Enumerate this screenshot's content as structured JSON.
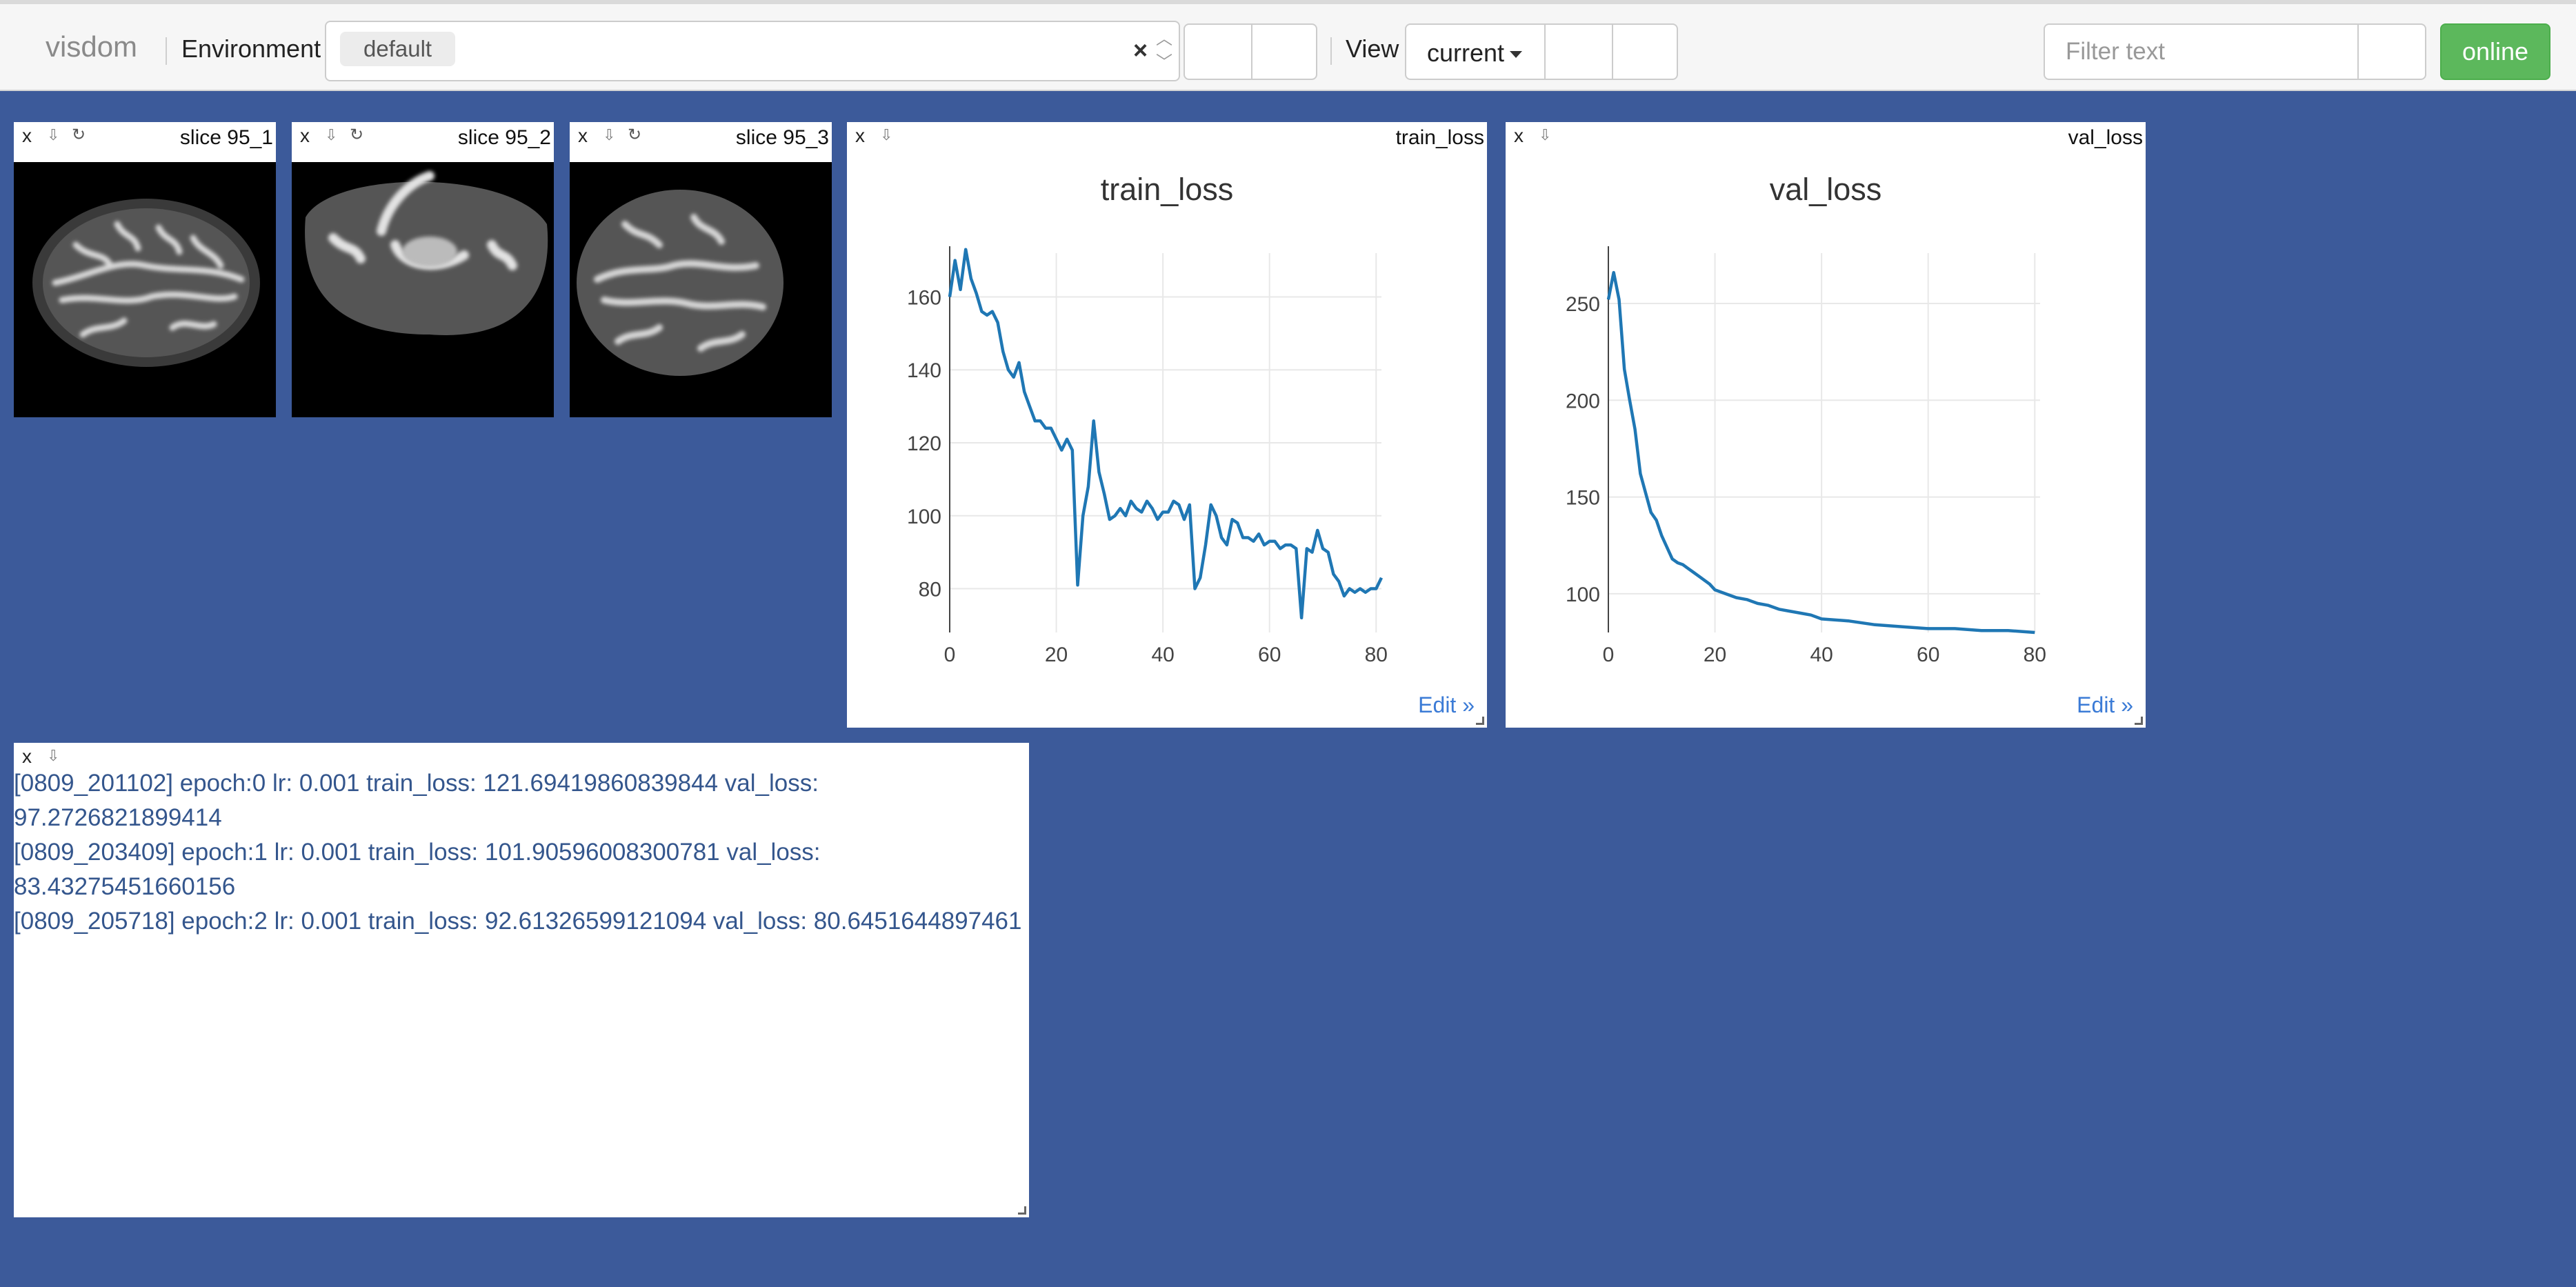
{
  "nav": {
    "brand": "visdom",
    "env_label": "Environment",
    "env_tag": "default",
    "env_clear": "×",
    "view_label": "View",
    "view_value": "current",
    "filter_placeholder": "Filter text",
    "online": "online"
  },
  "panes": {
    "close": "x",
    "download": "⇩",
    "refresh": "↻",
    "images": [
      {
        "title": "slice 95_1"
      },
      {
        "title": "slice 95_2"
      },
      {
        "title": "slice 95_3"
      }
    ],
    "train": {
      "title": "train_loss",
      "edit": "Edit »"
    },
    "val": {
      "title": "val_loss",
      "edit": "Edit »"
    }
  },
  "colors": {
    "background": "#3c5a9a",
    "line": "#1f77b4",
    "online": "#5cb85c",
    "log_text": "#34568d"
  },
  "chart_data": [
    {
      "type": "line",
      "title": "train_loss",
      "xlabel": "",
      "ylabel": "",
      "xlim": [
        0,
        81
      ],
      "ylim": [
        68,
        172
      ],
      "xticks": [
        0,
        20,
        40,
        60,
        80
      ],
      "yticks": [
        80,
        100,
        120,
        140,
        160
      ],
      "grid": true,
      "series": [
        {
          "x": [
            0,
            1,
            2,
            3,
            4,
            5,
            6,
            7,
            8,
            9,
            10,
            11,
            12,
            13,
            14,
            15,
            16,
            17,
            18,
            19,
            20,
            21,
            22,
            23,
            24,
            25,
            26,
            27,
            28,
            29,
            30,
            31,
            32,
            33,
            34,
            35,
            36,
            37,
            38,
            39,
            40,
            41,
            42,
            43,
            44,
            45,
            46,
            47,
            48,
            49,
            50,
            51,
            52,
            53,
            54,
            55,
            56,
            57,
            58,
            59,
            60,
            61,
            62,
            63,
            64,
            65,
            66,
            67,
            68,
            69,
            70,
            71,
            72,
            73,
            74,
            75,
            76,
            77,
            78,
            79,
            80,
            81
          ],
          "values": [
            160,
            170,
            162,
            173,
            165,
            161,
            156,
            155,
            156,
            153,
            145,
            140,
            138,
            142,
            134,
            130,
            126,
            126,
            124,
            124,
            121,
            118,
            121,
            118,
            81,
            100,
            108,
            126,
            112,
            106,
            99,
            100,
            102,
            100,
            104,
            102,
            101,
            104,
            102,
            99,
            101,
            101,
            104,
            103,
            99,
            103,
            80,
            83,
            92,
            103,
            100,
            94,
            92,
            99,
            98,
            94,
            94,
            93,
            95,
            92,
            93,
            93,
            91,
            92,
            92,
            91,
            72,
            91,
            90,
            96,
            91,
            90,
            84,
            82,
            78,
            80,
            79,
            80,
            79,
            80,
            80,
            83
          ]
        }
      ]
    },
    {
      "type": "line",
      "title": "val_loss",
      "xlabel": "",
      "ylabel": "",
      "xlim": [
        0,
        81
      ],
      "ylim": [
        80,
        276
      ],
      "xticks": [
        0,
        20,
        40,
        60,
        80
      ],
      "yticks": [
        100,
        150,
        200,
        250
      ],
      "grid": true,
      "series": [
        {
          "x": [
            0,
            1,
            2,
            3,
            4,
            5,
            6,
            7,
            8,
            9,
            10,
            11,
            12,
            13,
            14,
            15,
            16,
            17,
            18,
            19,
            20,
            22,
            24,
            26,
            28,
            30,
            32,
            34,
            36,
            38,
            40,
            45,
            50,
            55,
            60,
            65,
            70,
            75,
            80
          ],
          "values": [
            252,
            266,
            252,
            216,
            200,
            185,
            162,
            152,
            142,
            138,
            130,
            124,
            118,
            116,
            115,
            113,
            111,
            109,
            107,
            105,
            102,
            100,
            98,
            97,
            95,
            94,
            92,
            91,
            90,
            89,
            87,
            86,
            84,
            83,
            82,
            82,
            81,
            81,
            80
          ]
        }
      ]
    }
  ],
  "log": [
    "[0809_201102] epoch:0 lr: 0.001 train_loss: 121.69419860839844 val_loss:",
    "97.2726821899414",
    "[0809_203409] epoch:1 lr: 0.001 train_loss: 101.90596008300781 val_loss:",
    "83.43275451660156",
    "[0809_205718] epoch:2 lr: 0.001 train_loss: 92.61326599121094 val_loss: 80.6451644897461"
  ]
}
